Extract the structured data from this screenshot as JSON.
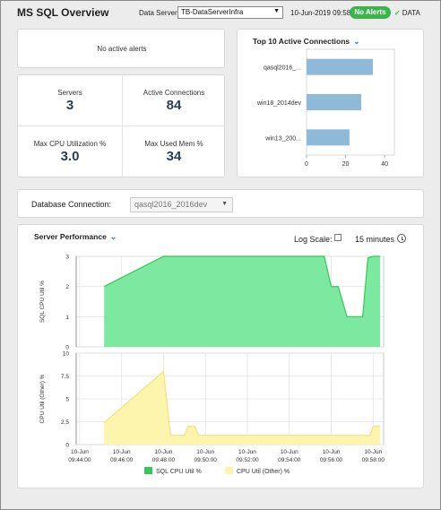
{
  "header": {
    "title": "MS SQL Overview",
    "data_server_label": "Data Server:",
    "data_server_value": "TB-DataServerInfra",
    "timestamp": "10-Jun-2019 09:58",
    "alert_badge": "No Alerts",
    "data_indicator": "DATA",
    "colors": {
      "badge": "#3ab54a"
    }
  },
  "alerts": {
    "message": "No active alerts"
  },
  "kpis": {
    "servers_label": "Servers",
    "servers_value": "3",
    "active_connections_label": "Active Connections",
    "active_connections_value": "84",
    "max_cpu_label": "Max CPU Utilization %",
    "max_cpu_value": "3.0",
    "max_mem_label": "Max Used Mem %",
    "max_mem_value": "34"
  },
  "top_connections": {
    "title": "Top 10 Active Connections",
    "chart_data": {
      "type": "bar",
      "orientation": "horizontal",
      "categories": [
        "qasql2016_...",
        "win18_2014dev",
        "win13_200..."
      ],
      "values": [
        34,
        28,
        22
      ],
      "xlim": [
        0,
        45
      ],
      "xticks": [
        "0",
        "20",
        "40"
      ],
      "color": "#8fb9d9"
    }
  },
  "db_connection": {
    "label": "Database Connection:",
    "value": "qasql2016_2016dev"
  },
  "server_performance": {
    "title": "Server Performance",
    "log_scale_label": "Log Scale:",
    "time_range": "15 minutes",
    "chart_data": [
      {
        "type": "area",
        "ylabel": "SQL CPU Util %",
        "ylim": [
          0,
          3
        ],
        "yticks": [
          "0",
          "1",
          "2",
          "3"
        ],
        "x": [
          "09:45:10",
          "09:48:00",
          "09:48:10",
          "09:55:40",
          "09:56:00",
          "09:56:20",
          "09:56:45",
          "09:57:30",
          "09:57:45",
          "09:58:00",
          "09:58:20"
        ],
        "values": [
          2,
          3,
          3,
          3,
          2,
          2,
          1,
          1,
          2.95,
          3,
          3
        ],
        "color": "#7ce8a0",
        "stroke": "#2ecc55"
      },
      {
        "type": "area",
        "ylabel": "CPU Util (Other) %",
        "ylim": [
          0,
          10
        ],
        "yticks": [
          "0",
          "2.5",
          "5",
          "7.5",
          "10"
        ],
        "x": [
          "09:45:10",
          "09:48:00",
          "09:48:20",
          "09:49:00",
          "09:49:10",
          "09:49:30",
          "09:49:40",
          "09:57:50",
          "09:58:00",
          "09:58:20"
        ],
        "values": [
          2.4,
          8,
          1,
          1,
          2,
          2,
          1,
          1,
          2,
          2
        ],
        "color": "#fdf5ad",
        "stroke": "#f3e27a"
      }
    ],
    "x_ticks": [
      {
        "date": "10-Jun",
        "time": "09:44:00"
      },
      {
        "date": "10-Jun",
        "time": "09:46:00"
      },
      {
        "date": "10-Jun",
        "time": "09:48:00"
      },
      {
        "date": "10-Jun",
        "time": "09:50:00"
      },
      {
        "date": "10-Jun",
        "time": "09:52:00"
      },
      {
        "date": "10-Jun",
        "time": "09:54:00"
      },
      {
        "date": "10-Jun",
        "time": "09:56:00"
      },
      {
        "date": "10-Jun",
        "time": "09:58:00"
      }
    ],
    "x_range": [
      "09:43:50",
      "09:58:30"
    ],
    "legend": [
      {
        "label": "SQL CPU Util %",
        "color": "#2ecc55"
      },
      {
        "label": "CPU Util (Other) %",
        "color": "#fdf5ad"
      }
    ]
  }
}
